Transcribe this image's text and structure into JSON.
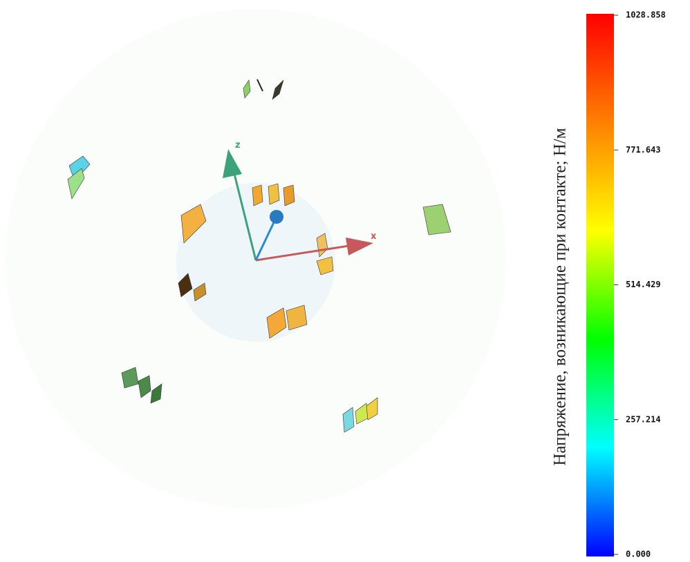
{
  "scene": {
    "axis_labels": [
      "z",
      "x"
    ]
  },
  "colorbar": {
    "label": "Напряжение, возникающие при контакте; Н/м",
    "lim": [
      0,
      1028.858
    ],
    "colors": [
      "#0000ff",
      "#00ffff",
      "#00ff00",
      "#ffff00",
      "#ff8000",
      "#ff0000"
    ],
    "ticks": [
      {
        "value": 1028.858,
        "label": "1028.858"
      },
      {
        "value": 771.643,
        "label": "771.643"
      },
      {
        "value": 514.429,
        "label": "514.429"
      },
      {
        "value": 257.214,
        "label": "257.214"
      },
      {
        "value": 0,
        "label": "0.000"
      }
    ]
  }
}
